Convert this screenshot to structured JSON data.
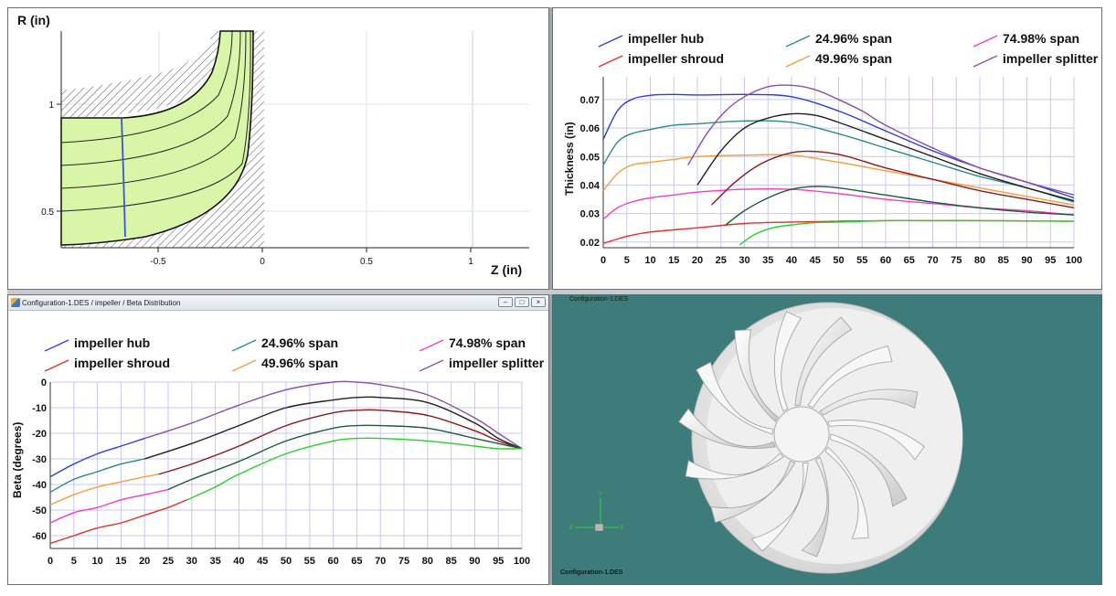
{
  "meridional": {
    "ylabel": "R (in)",
    "xlabel": "Z (in)",
    "y_ticks": [
      {
        "v": 1,
        "label": "1"
      },
      {
        "v": 0.5,
        "label": "0.5"
      }
    ],
    "x_ticks": [
      {
        "v": -0.5,
        "label": "-0.5"
      },
      {
        "v": 0,
        "label": "0"
      },
      {
        "v": 0.5,
        "label": "0.5"
      },
      {
        "v": 1,
        "label": "1"
      }
    ]
  },
  "thickness": {
    "ylabel": "Thickness (in)",
    "legend": [
      {
        "name": "impeller hub",
        "color": "#2b3ee0"
      },
      {
        "name": "impeller shroud",
        "color": "#e0302a"
      },
      {
        "name": "24.96% span",
        "color": "#2a8a8a"
      },
      {
        "name": "49.96% span",
        "color": "#f0a040"
      },
      {
        "name": "74.98% span",
        "color": "#f03cc8"
      },
      {
        "name": "impeller splitter",
        "color": "#8a50a8"
      }
    ],
    "y_ticks": [
      "0.02",
      "0.03",
      "0.04",
      "0.05",
      "0.06",
      "0.07"
    ],
    "x_ticks": [
      "0",
      "5",
      "10",
      "15",
      "20",
      "25",
      "30",
      "35",
      "40",
      "45",
      "50",
      "55",
      "60",
      "65",
      "70",
      "75",
      "80",
      "85",
      "90",
      "95",
      "100"
    ]
  },
  "chart_data": [
    {
      "type": "line",
      "ylabel": "Thickness (in)",
      "xlim": [
        0,
        100
      ],
      "ylim": [
        0.018,
        0.078
      ],
      "grid": true,
      "legend_position": "top",
      "series": [
        {
          "name": "impeller hub",
          "color": "#2b3ee0",
          "x": [
            0,
            3,
            6,
            10,
            15,
            20,
            30,
            40,
            50,
            60,
            70,
            80,
            90,
            100
          ],
          "y": [
            0.056,
            0.066,
            0.07,
            0.0715,
            0.0718,
            0.0716,
            0.0718,
            0.071,
            0.066,
            0.059,
            0.052,
            0.046,
            0.041,
            0.0355
          ]
        },
        {
          "name": "24.96% span",
          "color": "#2a8a8a",
          "x": [
            0,
            3,
            6,
            10,
            15,
            20,
            30,
            40,
            50,
            60,
            70,
            80,
            90,
            100
          ],
          "y": [
            0.047,
            0.055,
            0.058,
            0.0595,
            0.061,
            0.0615,
            0.0625,
            0.062,
            0.058,
            0.053,
            0.048,
            0.043,
            0.039,
            0.034
          ]
        },
        {
          "name": "49.96% span",
          "color": "#f0a040",
          "x": [
            0,
            3,
            6,
            10,
            15,
            20,
            30,
            40,
            50,
            60,
            70,
            80,
            90,
            100
          ],
          "y": [
            0.038,
            0.044,
            0.047,
            0.048,
            0.049,
            0.05,
            0.0505,
            0.0505,
            0.048,
            0.045,
            0.042,
            0.039,
            0.036,
            0.033
          ]
        },
        {
          "name": "74.98% span",
          "color": "#f03cc8",
          "x": [
            0,
            3,
            6,
            10,
            15,
            20,
            30,
            40,
            50,
            60,
            70,
            80,
            90,
            100
          ],
          "y": [
            0.028,
            0.032,
            0.034,
            0.0355,
            0.0365,
            0.0375,
            0.0385,
            0.0385,
            0.037,
            0.035,
            0.0335,
            0.032,
            0.031,
            0.0295
          ]
        },
        {
          "name": "impeller shroud",
          "color": "#e0302a",
          "x": [
            0,
            5,
            10,
            20,
            30,
            40,
            50,
            60,
            70,
            80,
            90,
            100
          ],
          "y": [
            0.0195,
            0.022,
            0.0235,
            0.025,
            0.0265,
            0.027,
            0.0273,
            0.0275,
            0.0275,
            0.0275,
            0.0274,
            0.0273
          ]
        },
        {
          "name": "impeller splitter",
          "color": "#8a50a8",
          "x": [
            18,
            22,
            26,
            30,
            35,
            40,
            45,
            50,
            55,
            60,
            70,
            80,
            90,
            100
          ],
          "y": [
            0.047,
            0.058,
            0.066,
            0.071,
            0.0745,
            0.075,
            0.0735,
            0.07,
            0.066,
            0.061,
            0.053,
            0.046,
            0.041,
            0.0365
          ]
        },
        {
          "color": "#1f1f1f",
          "x": [
            20,
            25,
            30,
            35,
            40,
            45,
            50,
            60,
            70,
            80,
            90,
            100
          ],
          "y": [
            0.04,
            0.052,
            0.06,
            0.0635,
            0.065,
            0.0645,
            0.062,
            0.056,
            0.05,
            0.044,
            0.039,
            0.0345
          ]
        },
        {
          "color": "#8b1a1a",
          "x": [
            23,
            28,
            33,
            38,
            42,
            47,
            52,
            60,
            70,
            80,
            90,
            100
          ],
          "y": [
            0.033,
            0.041,
            0.047,
            0.0505,
            0.0518,
            0.0515,
            0.05,
            0.046,
            0.042,
            0.038,
            0.035,
            0.032
          ]
        },
        {
          "color": "#1f5a3a",
          "x": [
            26,
            30,
            35,
            40,
            45,
            50,
            60,
            70,
            80,
            90,
            100
          ],
          "y": [
            0.026,
            0.031,
            0.0355,
            0.0385,
            0.0395,
            0.039,
            0.0365,
            0.034,
            0.032,
            0.0305,
            0.0295
          ]
        },
        {
          "color": "#2ad02a",
          "x": [
            29,
            32,
            36,
            40,
            45,
            50,
            60,
            70,
            80,
            90,
            100
          ],
          "y": [
            0.019,
            0.0225,
            0.025,
            0.026,
            0.0268,
            0.027,
            0.0275,
            0.0275,
            0.0275,
            0.0274,
            0.0273
          ]
        }
      ]
    },
    {
      "type": "line",
      "ylabel": "Beta (degrees)",
      "xlim": [
        0,
        100
      ],
      "ylim": [
        -65,
        0
      ],
      "grid": true,
      "legend_position": "top",
      "series": [
        {
          "name": "impeller hub",
          "color": "#2b3ee0",
          "x": [
            0,
            5,
            10,
            15,
            20
          ],
          "y": [
            -37,
            -32,
            -28,
            -25,
            -22
          ]
        },
        {
          "name": "24.96% span",
          "color": "#2a8a8a",
          "x": [
            0,
            5,
            10,
            15,
            20
          ],
          "y": [
            -43,
            -38,
            -35,
            -32,
            -30
          ]
        },
        {
          "name": "49.96% span",
          "color": "#f0a040",
          "x": [
            0,
            5,
            10,
            15,
            20,
            23
          ],
          "y": [
            -48,
            -44,
            -41,
            -39,
            -37,
            -36
          ]
        },
        {
          "name": "74.98% span",
          "color": "#f03cc8",
          "x": [
            0,
            5,
            10,
            15,
            20,
            25
          ],
          "y": [
            -55,
            -51,
            -49,
            -46,
            -44,
            -42
          ]
        },
        {
          "name": "impeller shroud",
          "color": "#e0302a",
          "x": [
            0,
            5,
            10,
            15,
            20,
            25,
            29
          ],
          "y": [
            -63,
            -60,
            -57,
            -55,
            -52,
            -49,
            -46
          ]
        },
        {
          "name": "impeller splitter",
          "color": "#8a50a8",
          "x": [
            20,
            30,
            40,
            50,
            60,
            65,
            70,
            80,
            90,
            95,
            100
          ],
          "y": [
            -22,
            -16,
            -9,
            -3,
            0,
            0,
            -1,
            -5,
            -14,
            -20,
            -26
          ]
        },
        {
          "color": "#1f1f1f",
          "x": [
            20,
            30,
            40,
            50,
            60,
            65,
            70,
            80,
            90,
            95,
            100
          ],
          "y": [
            -30,
            -24,
            -17,
            -10,
            -7,
            -6,
            -6,
            -8,
            -16,
            -22,
            -26
          ]
        },
        {
          "color": "#8b1a1a",
          "x": [
            23,
            30,
            40,
            50,
            60,
            65,
            70,
            80,
            90,
            95,
            100
          ],
          "y": [
            -36,
            -32,
            -25,
            -17,
            -12,
            -11,
            -11,
            -13,
            -19,
            -23,
            -26
          ]
        },
        {
          "color": "#1f5a3a",
          "x": [
            25,
            30,
            40,
            50,
            60,
            65,
            70,
            80,
            90,
            95,
            100
          ],
          "y": [
            -42,
            -38,
            -31,
            -23,
            -18,
            -17,
            -17,
            -18,
            -22,
            -24,
            -26
          ]
        },
        {
          "color": "#2ad02a",
          "x": [
            29,
            35,
            40,
            50,
            60,
            65,
            70,
            80,
            90,
            95,
            100
          ],
          "y": [
            -46,
            -41,
            -36,
            -28,
            -23,
            -22,
            -22,
            -23,
            -25,
            -26,
            -26
          ]
        }
      ]
    }
  ],
  "beta": {
    "window_title": "Configuration-1.DES / impeller / Beta Distribution",
    "window_buttons": [
      "–",
      "□",
      "×"
    ],
    "ylabel": "Beta (degrees)",
    "legend": [
      {
        "name": "impeller hub",
        "color": "#2b3ee0"
      },
      {
        "name": "impeller shroud",
        "color": "#e0302a"
      },
      {
        "name": "24.96% span",
        "color": "#2a8a8a"
      },
      {
        "name": "49.96% span",
        "color": "#f0a040"
      },
      {
        "name": "74.98% span",
        "color": "#f03cc8"
      },
      {
        "name": "impeller splitter",
        "color": "#8a50a8"
      }
    ],
    "y_ticks": [
      "0",
      "-10",
      "-20",
      "-30",
      "-40",
      "-50",
      "-60"
    ],
    "x_ticks": [
      "0",
      "5",
      "10",
      "15",
      "20",
      "25",
      "30",
      "35",
      "40",
      "45",
      "50",
      "55",
      "60",
      "65",
      "70",
      "75",
      "80",
      "85",
      "90",
      "95",
      "100"
    ]
  },
  "viewer": {
    "top_label": "Configuration-1.DES",
    "bottom_label": "Configuration-1.DES",
    "axis_labels": [
      "Y",
      "X",
      "Z"
    ]
  }
}
